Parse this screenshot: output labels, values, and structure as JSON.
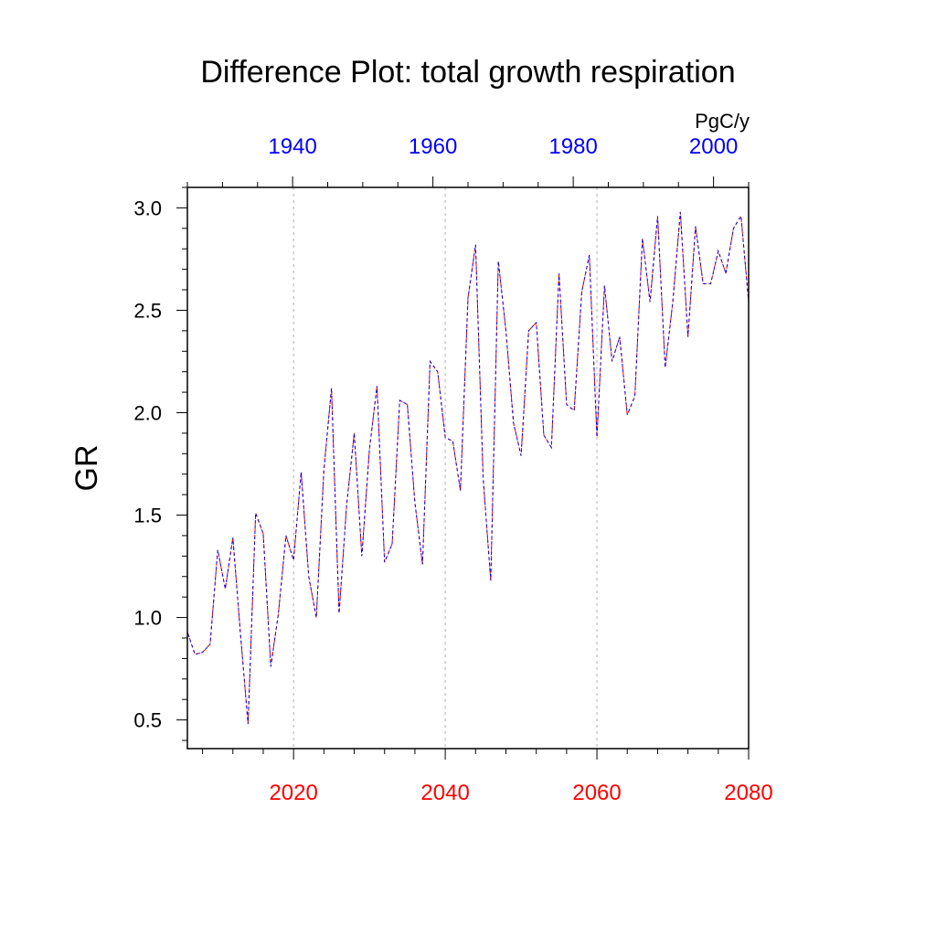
{
  "chart_data": {
    "type": "line",
    "title": "Difference Plot: total growth respiration",
    "units": "PgC/y",
    "ylabel": "GR",
    "ylim": [
      0.36,
      3.1
    ],
    "yticks": [
      0.5,
      1.0,
      1.5,
      2.0,
      2.5,
      3.0
    ],
    "ytick_labels": [
      "0.5",
      "1.0",
      "1.5",
      "2.0",
      "2.5",
      "3.0"
    ],
    "bottom_axis": {
      "range": [
        2006,
        2080
      ],
      "ticks": [
        2020,
        2040,
        2060,
        2080
      ],
      "tick_labels": [
        "2020",
        "2040",
        "2060",
        "2080"
      ],
      "color": "#ff0000"
    },
    "top_axis": {
      "range": [
        1925,
        2005
      ],
      "ticks": [
        1940,
        1960,
        1980,
        2000
      ],
      "tick_labels": [
        "1940",
        "1960",
        "1980",
        "2000"
      ],
      "color": "#0000ff"
    },
    "grid": "vertical-dotted",
    "series": [
      {
        "color": "#ff0000",
        "style": "dashed",
        "x": [
          2006,
          2007,
          2008,
          2009,
          2010,
          2011,
          2012,
          2013,
          2014,
          2015,
          2016,
          2017,
          2018,
          2019,
          2020,
          2021,
          2022,
          2023,
          2024,
          2025,
          2026,
          2027,
          2028,
          2029,
          2030,
          2031,
          2032,
          2033,
          2034,
          2035,
          2036,
          2037,
          2038,
          2039,
          2040,
          2041,
          2042,
          2043,
          2044,
          2045,
          2046,
          2047,
          2048,
          2049,
          2050,
          2051,
          2052,
          2053,
          2054,
          2055,
          2056,
          2057,
          2058,
          2059,
          2060,
          2061,
          2062,
          2063,
          2064,
          2065,
          2066,
          2067,
          2068,
          2069,
          2070,
          2071,
          2072,
          2073,
          2074,
          2075,
          2076,
          2077,
          2078,
          2079,
          2080
        ],
        "y": [
          0.93,
          0.82,
          0.83,
          0.87,
          1.33,
          1.14,
          1.39,
          0.92,
          0.48,
          1.51,
          1.41,
          0.76,
          1.02,
          1.4,
          1.28,
          1.71,
          1.2,
          1.0,
          1.72,
          2.12,
          1.02,
          1.55,
          1.9,
          1.3,
          1.82,
          2.13,
          1.27,
          1.36,
          2.06,
          2.04,
          1.56,
          1.26,
          2.25,
          2.2,
          1.88,
          1.86,
          1.62,
          2.56,
          2.82,
          1.68,
          1.18,
          2.74,
          2.4,
          1.95,
          1.79,
          2.4,
          2.44,
          1.89,
          1.83,
          2.68,
          2.04,
          2.01,
          2.59,
          2.77,
          1.88,
          2.62,
          2.25,
          2.37,
          1.99,
          2.08,
          2.85,
          2.54,
          2.96,
          2.22,
          2.54,
          2.98,
          2.37,
          2.91,
          2.63,
          2.63,
          2.79,
          2.68,
          2.9,
          2.96,
          2.54
        ]
      },
      {
        "color": "#0000ff",
        "style": "dashed",
        "x": [
          2006,
          2007,
          2008,
          2009,
          2010,
          2011,
          2012,
          2013,
          2014,
          2015,
          2016,
          2017,
          2018,
          2019,
          2020,
          2021,
          2022,
          2023,
          2024,
          2025,
          2026,
          2027,
          2028,
          2029,
          2030,
          2031,
          2032,
          2033,
          2034,
          2035,
          2036,
          2037,
          2038,
          2039,
          2040,
          2041,
          2042,
          2043,
          2044,
          2045,
          2046,
          2047,
          2048,
          2049,
          2050,
          2051,
          2052,
          2053,
          2054,
          2055,
          2056,
          2057,
          2058,
          2059,
          2060,
          2061,
          2062,
          2063,
          2064,
          2065,
          2066,
          2067,
          2068,
          2069,
          2070,
          2071,
          2072,
          2073,
          2074,
          2075,
          2076,
          2077,
          2078,
          2079,
          2080
        ],
        "y": [
          0.93,
          0.82,
          0.83,
          0.87,
          1.33,
          1.14,
          1.39,
          0.92,
          0.48,
          1.51,
          1.41,
          0.76,
          1.02,
          1.4,
          1.28,
          1.71,
          1.2,
          1.0,
          1.72,
          2.12,
          1.02,
          1.55,
          1.9,
          1.3,
          1.82,
          2.13,
          1.27,
          1.36,
          2.06,
          2.04,
          1.56,
          1.26,
          2.25,
          2.2,
          1.88,
          1.86,
          1.62,
          2.56,
          2.82,
          1.68,
          1.18,
          2.74,
          2.4,
          1.95,
          1.79,
          2.4,
          2.44,
          1.89,
          1.83,
          2.68,
          2.04,
          2.01,
          2.59,
          2.77,
          1.88,
          2.62,
          2.25,
          2.37,
          1.99,
          2.08,
          2.85,
          2.54,
          2.96,
          2.22,
          2.54,
          2.98,
          2.37,
          2.91,
          2.63,
          2.63,
          2.79,
          2.68,
          2.9,
          2.96,
          2.54
        ]
      }
    ]
  }
}
